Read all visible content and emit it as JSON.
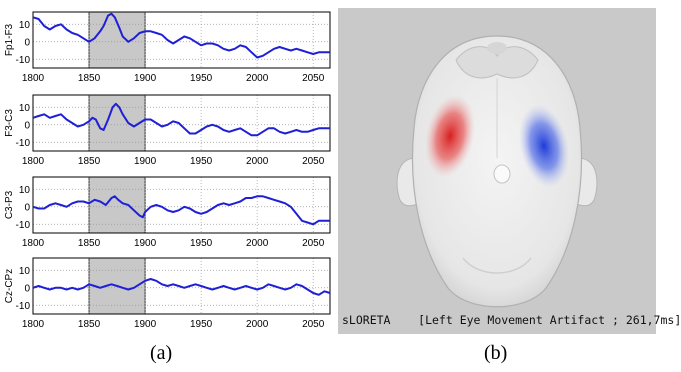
{
  "captions": {
    "left": "(a)",
    "right": "(b)"
  },
  "chart_data": {
    "type": "line",
    "panels": [
      {
        "name": "Fp1-F3",
        "yticks": [
          "10",
          "0",
          "-10"
        ],
        "ylim": [
          -15,
          17
        ],
        "points": [
          [
            1800,
            14
          ],
          [
            1805,
            13
          ],
          [
            1810,
            9
          ],
          [
            1815,
            7
          ],
          [
            1820,
            9
          ],
          [
            1825,
            10
          ],
          [
            1830,
            7
          ],
          [
            1835,
            5
          ],
          [
            1840,
            4
          ],
          [
            1845,
            2
          ],
          [
            1850,
            0
          ],
          [
            1855,
            2
          ],
          [
            1860,
            6
          ],
          [
            1863,
            9
          ],
          [
            1867,
            15
          ],
          [
            1870,
            16
          ],
          [
            1873,
            14
          ],
          [
            1877,
            8
          ],
          [
            1880,
            3
          ],
          [
            1885,
            0
          ],
          [
            1890,
            2
          ],
          [
            1895,
            5
          ],
          [
            1900,
            6
          ],
          [
            1905,
            6
          ],
          [
            1910,
            5
          ],
          [
            1915,
            4
          ],
          [
            1920,
            1
          ],
          [
            1925,
            -1
          ],
          [
            1930,
            1
          ],
          [
            1935,
            3
          ],
          [
            1940,
            2
          ],
          [
            1945,
            0
          ],
          [
            1950,
            -2
          ],
          [
            1955,
            -1
          ],
          [
            1960,
            -1
          ],
          [
            1965,
            -2
          ],
          [
            1970,
            -4
          ],
          [
            1975,
            -5
          ],
          [
            1980,
            -4
          ],
          [
            1985,
            -2
          ],
          [
            1990,
            -3
          ],
          [
            1995,
            -6
          ],
          [
            2000,
            -9
          ],
          [
            2005,
            -8
          ],
          [
            2010,
            -6
          ],
          [
            2015,
            -4
          ],
          [
            2020,
            -3
          ],
          [
            2025,
            -4
          ],
          [
            2030,
            -5
          ],
          [
            2035,
            -4
          ],
          [
            2040,
            -5
          ],
          [
            2045,
            -6
          ],
          [
            2050,
            -7
          ],
          [
            2055,
            -6
          ],
          [
            2060,
            -6
          ],
          [
            2065,
            -6
          ]
        ]
      },
      {
        "name": "F3-C3",
        "yticks": [
          "10",
          "0",
          "-10"
        ],
        "ylim": [
          -15,
          17
        ],
        "points": [
          [
            1800,
            4
          ],
          [
            1805,
            5
          ],
          [
            1810,
            6
          ],
          [
            1815,
            4
          ],
          [
            1820,
            5
          ],
          [
            1825,
            6
          ],
          [
            1830,
            3
          ],
          [
            1835,
            1
          ],
          [
            1840,
            -1
          ],
          [
            1845,
            0
          ],
          [
            1850,
            2
          ],
          [
            1853,
            4
          ],
          [
            1856,
            3
          ],
          [
            1860,
            -2
          ],
          [
            1863,
            -3
          ],
          [
            1867,
            3
          ],
          [
            1871,
            10
          ],
          [
            1874,
            12
          ],
          [
            1877,
            10
          ],
          [
            1880,
            6
          ],
          [
            1885,
            1
          ],
          [
            1890,
            -1
          ],
          [
            1895,
            1
          ],
          [
            1900,
            3
          ],
          [
            1905,
            3
          ],
          [
            1910,
            1
          ],
          [
            1915,
            -1
          ],
          [
            1920,
            0
          ],
          [
            1925,
            2
          ],
          [
            1930,
            1
          ],
          [
            1935,
            -2
          ],
          [
            1940,
            -5
          ],
          [
            1945,
            -5
          ],
          [
            1950,
            -3
          ],
          [
            1955,
            -1
          ],
          [
            1960,
            0
          ],
          [
            1965,
            -1
          ],
          [
            1970,
            -3
          ],
          [
            1975,
            -4
          ],
          [
            1980,
            -3
          ],
          [
            1985,
            -2
          ],
          [
            1990,
            -4
          ],
          [
            1995,
            -6
          ],
          [
            2000,
            -6
          ],
          [
            2005,
            -4
          ],
          [
            2010,
            -2
          ],
          [
            2015,
            -2
          ],
          [
            2020,
            -4
          ],
          [
            2025,
            -5
          ],
          [
            2030,
            -4
          ],
          [
            2035,
            -3
          ],
          [
            2040,
            -4
          ],
          [
            2045,
            -4
          ],
          [
            2050,
            -3
          ],
          [
            2055,
            -2
          ],
          [
            2060,
            -2
          ],
          [
            2065,
            -2
          ]
        ]
      },
      {
        "name": "C3-P3",
        "yticks": [
          "10",
          "0",
          "-10"
        ],
        "ylim": [
          -15,
          17
        ],
        "points": [
          [
            1800,
            0
          ],
          [
            1805,
            -1
          ],
          [
            1810,
            -1
          ],
          [
            1815,
            1
          ],
          [
            1820,
            2
          ],
          [
            1825,
            1
          ],
          [
            1830,
            0
          ],
          [
            1835,
            2
          ],
          [
            1840,
            3
          ],
          [
            1845,
            3
          ],
          [
            1850,
            2
          ],
          [
            1855,
            4
          ],
          [
            1860,
            3
          ],
          [
            1865,
            1
          ],
          [
            1870,
            5
          ],
          [
            1873,
            6
          ],
          [
            1876,
            4
          ],
          [
            1880,
            2
          ],
          [
            1885,
            1
          ],
          [
            1890,
            -2
          ],
          [
            1895,
            -5
          ],
          [
            1898,
            -6
          ],
          [
            1900,
            -3
          ],
          [
            1905,
            0
          ],
          [
            1910,
            1
          ],
          [
            1915,
            0
          ],
          [
            1920,
            -2
          ],
          [
            1925,
            -3
          ],
          [
            1930,
            -2
          ],
          [
            1935,
            0
          ],
          [
            1940,
            -1
          ],
          [
            1945,
            -3
          ],
          [
            1950,
            -4
          ],
          [
            1955,
            -3
          ],
          [
            1960,
            -1
          ],
          [
            1965,
            1
          ],
          [
            1970,
            2
          ],
          [
            1975,
            1
          ],
          [
            1980,
            2
          ],
          [
            1985,
            3
          ],
          [
            1990,
            5
          ],
          [
            1995,
            5
          ],
          [
            2000,
            6
          ],
          [
            2005,
            6
          ],
          [
            2010,
            5
          ],
          [
            2015,
            4
          ],
          [
            2020,
            3
          ],
          [
            2025,
            2
          ],
          [
            2030,
            0
          ],
          [
            2035,
            -4
          ],
          [
            2040,
            -8
          ],
          [
            2045,
            -9
          ],
          [
            2050,
            -10
          ],
          [
            2055,
            -8
          ],
          [
            2060,
            -8
          ],
          [
            2065,
            -8
          ]
        ]
      },
      {
        "name": "Cz-CPz",
        "yticks": [
          "10",
          "0",
          "-10"
        ],
        "ylim": [
          -15,
          17
        ],
        "points": [
          [
            1800,
            0
          ],
          [
            1805,
            1
          ],
          [
            1810,
            0
          ],
          [
            1815,
            -1
          ],
          [
            1820,
            0
          ],
          [
            1825,
            0
          ],
          [
            1830,
            -1
          ],
          [
            1835,
            0
          ],
          [
            1840,
            -1
          ],
          [
            1845,
            0
          ],
          [
            1850,
            2
          ],
          [
            1855,
            1
          ],
          [
            1860,
            0
          ],
          [
            1865,
            1
          ],
          [
            1870,
            2
          ],
          [
            1875,
            1
          ],
          [
            1880,
            0
          ],
          [
            1885,
            -1
          ],
          [
            1890,
            0
          ],
          [
            1895,
            2
          ],
          [
            1900,
            4
          ],
          [
            1905,
            5
          ],
          [
            1910,
            4
          ],
          [
            1915,
            2
          ],
          [
            1920,
            1
          ],
          [
            1925,
            2
          ],
          [
            1930,
            1
          ],
          [
            1935,
            0
          ],
          [
            1940,
            1
          ],
          [
            1945,
            2
          ],
          [
            1950,
            1
          ],
          [
            1955,
            0
          ],
          [
            1960,
            -1
          ],
          [
            1965,
            0
          ],
          [
            1970,
            1
          ],
          [
            1975,
            0
          ],
          [
            1980,
            -1
          ],
          [
            1985,
            0
          ],
          [
            1990,
            1
          ],
          [
            1995,
            0
          ],
          [
            2000,
            -1
          ],
          [
            2005,
            0
          ],
          [
            2010,
            2
          ],
          [
            2015,
            1
          ],
          [
            2020,
            0
          ],
          [
            2025,
            -1
          ],
          [
            2030,
            0
          ],
          [
            2035,
            2
          ],
          [
            2040,
            1
          ],
          [
            2045,
            -1
          ],
          [
            2050,
            -3
          ],
          [
            2055,
            -4
          ],
          [
            2060,
            -2
          ],
          [
            2065,
            -3
          ]
        ]
      }
    ],
    "xlim": [
      1800,
      2065
    ],
    "xticks": [
      "1800",
      "1850",
      "1900",
      "1950",
      "2000",
      "2050"
    ],
    "highlight": [
      1850,
      1900
    ],
    "line_color": "#1f1fd6",
    "highlight_color": "#c8c8c8"
  },
  "topomap": {
    "label": "sLORETA    [Left Eye Movement Artifact ; 261,7ms]",
    "positive_color": "#e23a3a",
    "negative_color": "#3a5ce2"
  }
}
